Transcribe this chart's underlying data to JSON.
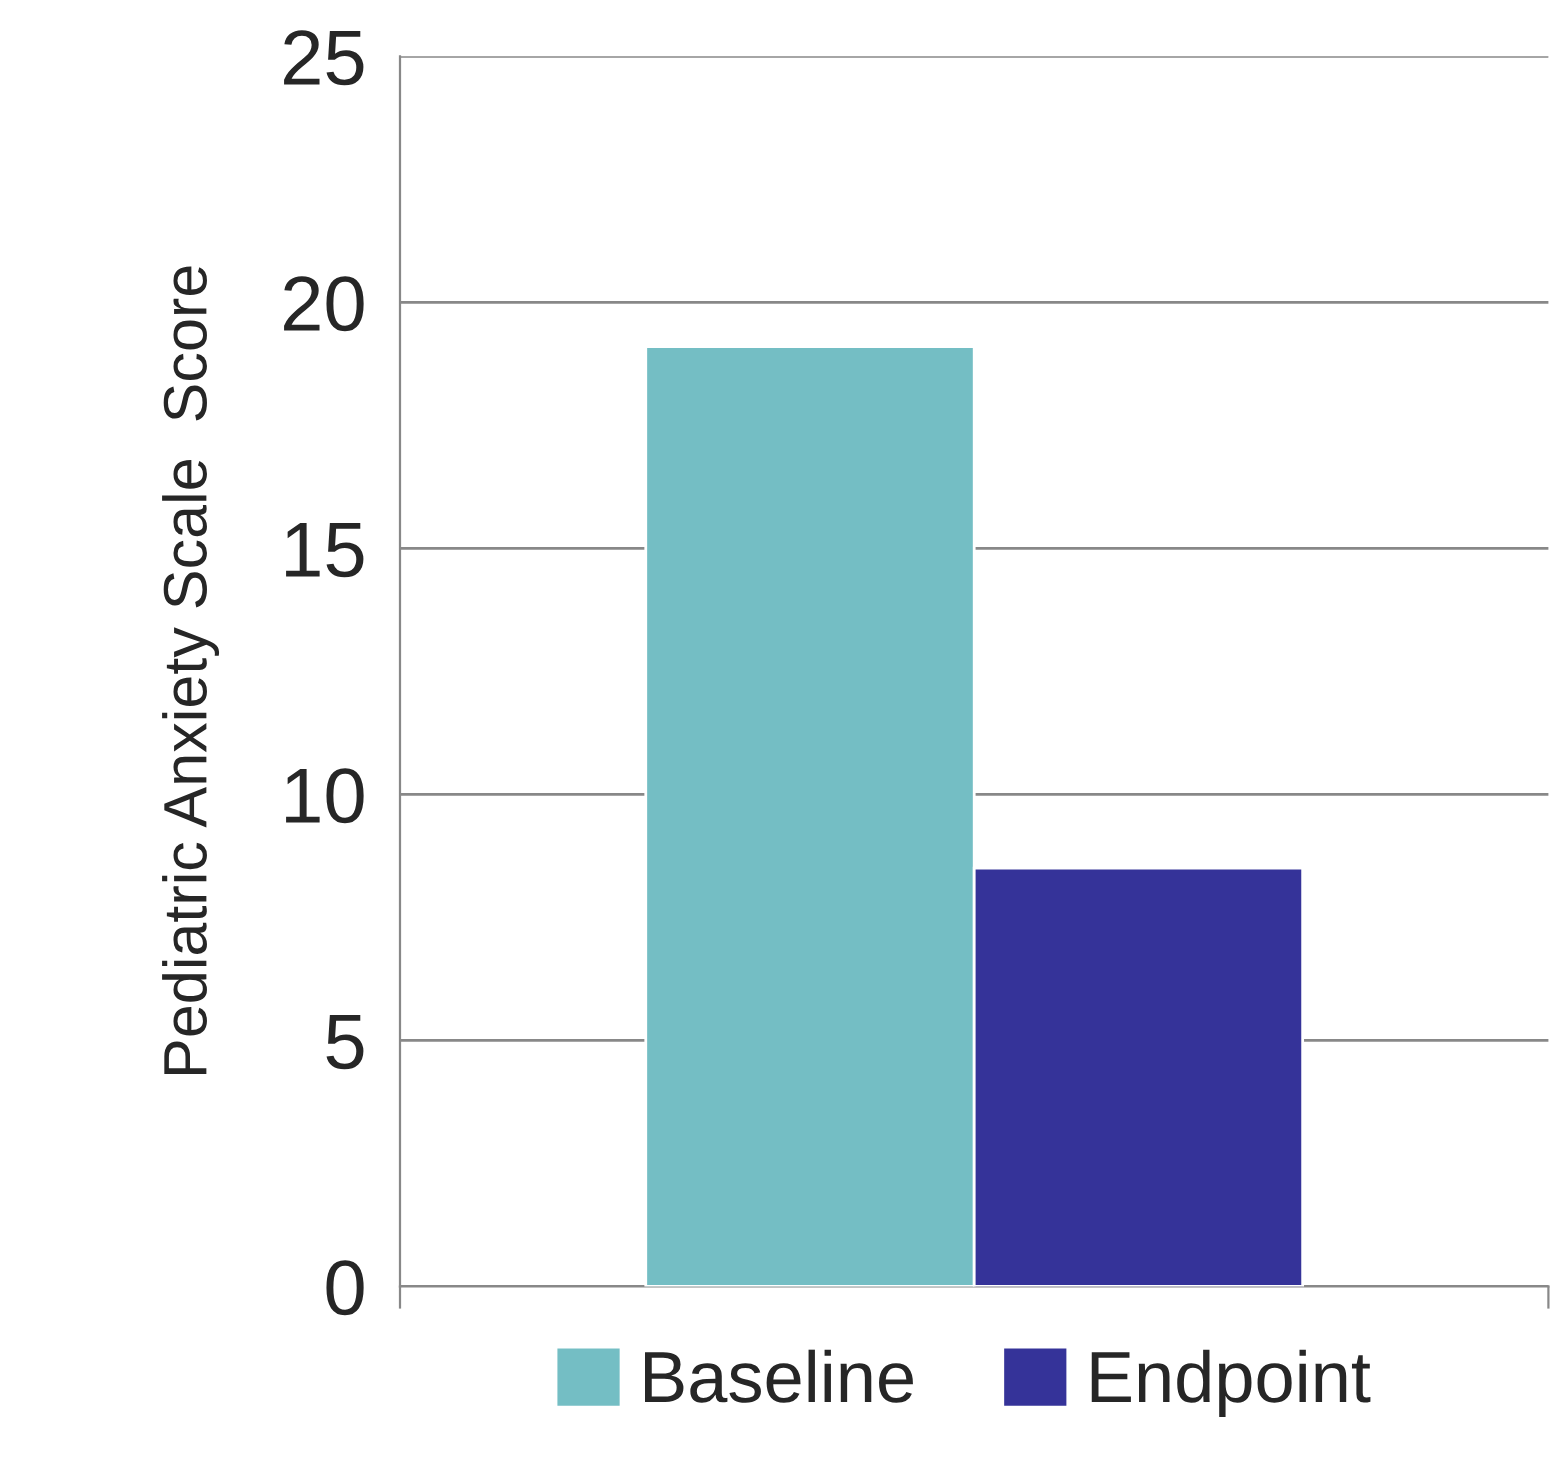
{
  "chart_data": {
    "type": "bar",
    "ylabel": "Pediatric Anxiety Scale  Score",
    "categories": [
      null
    ],
    "series": [
      {
        "name": "Baseline",
        "color": "#74bec4",
        "values": [
          19.1
        ]
      },
      {
        "name": "Endpoint",
        "color": "#353399",
        "values": [
          8.5
        ]
      }
    ],
    "ylim": [
      0,
      25
    ],
    "yticks": [
      0,
      5,
      10,
      15,
      20,
      25
    ],
    "grid": "y",
    "legend": "bottom"
  }
}
